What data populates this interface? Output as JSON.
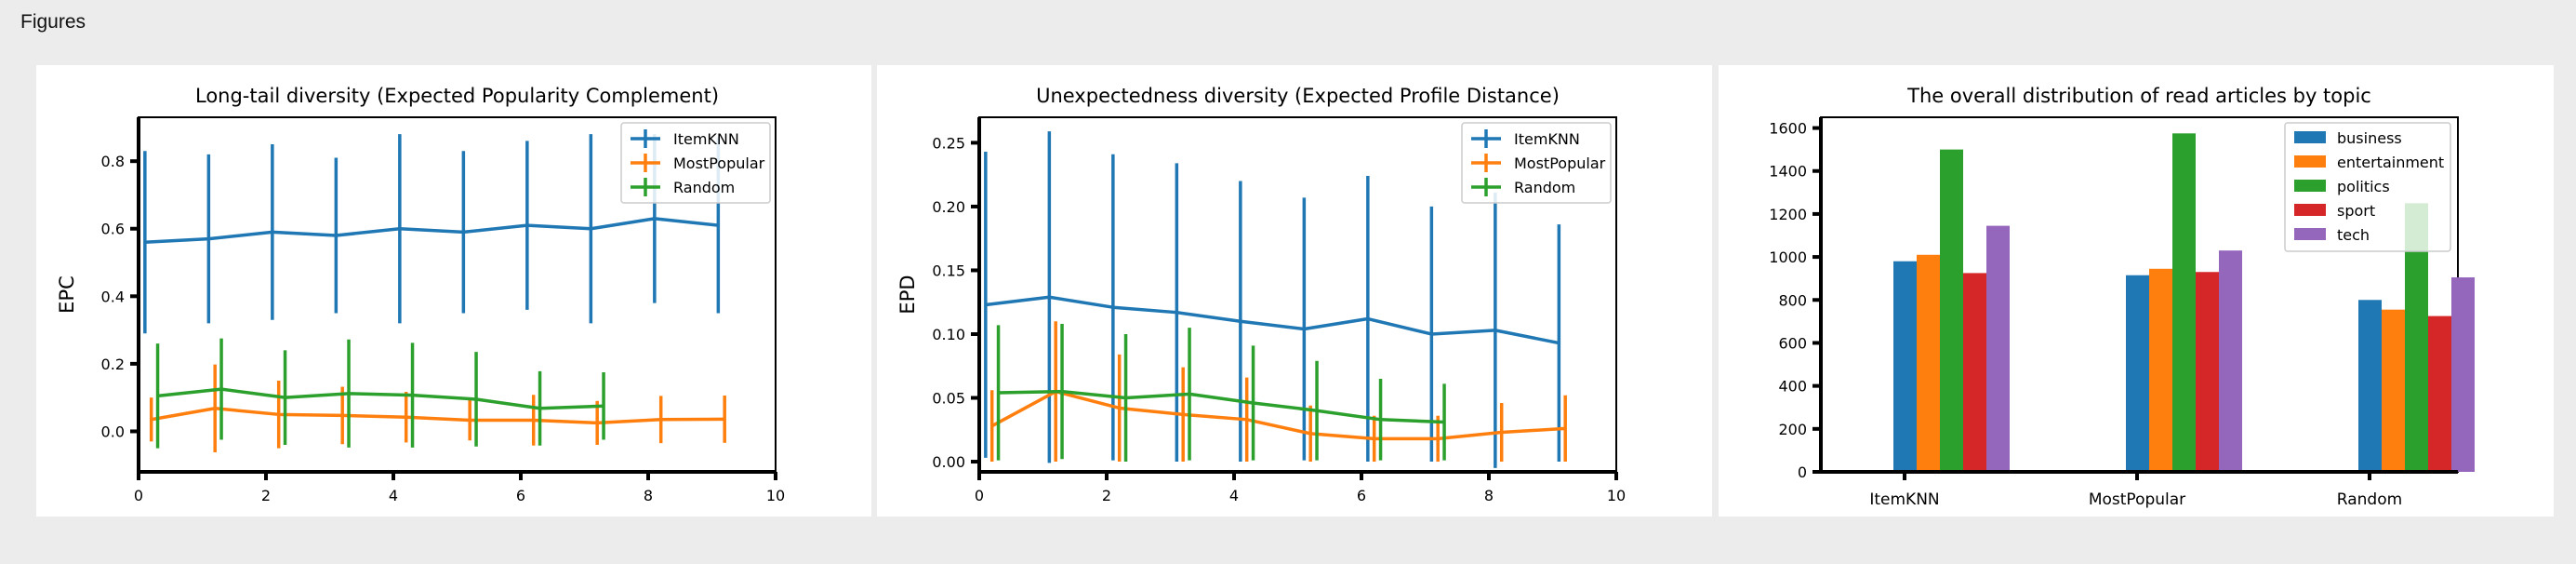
{
  "page": {
    "title": "Figures"
  },
  "colors": {
    "blue": "#1f77b4",
    "orange": "#ff7f0e",
    "green": "#2ca02c",
    "red": "#d62728",
    "purple": "#9467bd"
  },
  "chart_data": [
    {
      "type": "line",
      "errorbars": true,
      "title": "Long-tail diversity (Expected Popularity Complement)",
      "xlabel": "",
      "ylabel": "EPC",
      "xlim": [
        0,
        10
      ],
      "ylim": [
        -0.12,
        0.93
      ],
      "xticks": [
        "0",
        "2",
        "4",
        "6",
        "8",
        "10"
      ],
      "yticks": [
        "0.0",
        "0.2",
        "0.4",
        "0.6",
        "0.8"
      ],
      "legend_position": "top-right",
      "series": [
        {
          "name": "ItemKNN",
          "color": "#1f77b4",
          "x": [
            0.1,
            1.1,
            2.1,
            3.1,
            4.1,
            5.1,
            6.1,
            7.1,
            8.1,
            9.1
          ],
          "y": [
            0.56,
            0.57,
            0.59,
            0.58,
            0.6,
            0.59,
            0.61,
            0.6,
            0.63,
            0.61
          ],
          "err": [
            0.27,
            0.25,
            0.26,
            0.23,
            0.28,
            0.24,
            0.25,
            0.28,
            0.25,
            0.26
          ]
        },
        {
          "name": "MostPopular",
          "color": "#ff7f0e",
          "x": [
            0.2,
            1.2,
            2.2,
            3.2,
            4.2,
            5.2,
            6.2,
            7.2,
            8.2,
            9.2
          ],
          "y": [
            0.035,
            0.068,
            0.05,
            0.047,
            0.042,
            0.033,
            0.033,
            0.025,
            0.035,
            0.036
          ],
          "err": [
            0.065,
            0.13,
            0.1,
            0.085,
            0.075,
            0.06,
            0.075,
            0.065,
            0.07,
            0.07
          ]
        },
        {
          "name": "Random",
          "color": "#2ca02c",
          "x": [
            0.3,
            1.3,
            2.3,
            3.3,
            4.3,
            5.3,
            6.3,
            7.3
          ],
          "y": [
            0.105,
            0.125,
            0.1,
            0.112,
            0.107,
            0.095,
            0.068,
            0.075
          ],
          "err": [
            0.155,
            0.15,
            0.14,
            0.16,
            0.155,
            0.14,
            0.11,
            0.1
          ]
        }
      ]
    },
    {
      "type": "line",
      "errorbars": true,
      "title": "Unexpectedness diversity (Expected Profile Distance)",
      "xlabel": "",
      "ylabel": "EPD",
      "xlim": [
        0,
        10
      ],
      "ylim": [
        -0.008,
        0.27
      ],
      "xticks": [
        "0",
        "2",
        "4",
        "6",
        "8",
        "10"
      ],
      "yticks": [
        "0.00",
        "0.05",
        "0.10",
        "0.15",
        "0.20",
        "0.25"
      ],
      "legend_position": "top-right",
      "series": [
        {
          "name": "ItemKNN",
          "color": "#1f77b4",
          "x": [
            0.1,
            1.1,
            2.1,
            3.1,
            4.1,
            5.1,
            6.1,
            7.1,
            8.1,
            9.1
          ],
          "y": [
            0.123,
            0.129,
            0.121,
            0.117,
            0.11,
            0.104,
            0.112,
            0.1,
            0.103,
            0.093
          ],
          "err": [
            0.12,
            0.13,
            0.12,
            0.117,
            0.11,
            0.103,
            0.112,
            0.1,
            0.108,
            0.093
          ]
        },
        {
          "name": "MostPopular",
          "color": "#ff7f0e",
          "x": [
            0.2,
            1.2,
            2.2,
            3.2,
            4.2,
            5.2,
            6.2,
            7.2,
            8.2,
            9.2
          ],
          "y": [
            0.028,
            0.055,
            0.042,
            0.037,
            0.033,
            0.022,
            0.018,
            0.018,
            0.023,
            0.026
          ],
          "err": [
            0.028,
            0.055,
            0.042,
            0.037,
            0.033,
            0.022,
            0.018,
            0.018,
            0.023,
            0.026
          ]
        },
        {
          "name": "Random",
          "color": "#2ca02c",
          "x": [
            0.3,
            1.3,
            2.3,
            3.3,
            4.3,
            5.3,
            6.3,
            7.3
          ],
          "y": [
            0.054,
            0.055,
            0.05,
            0.053,
            0.046,
            0.04,
            0.033,
            0.031
          ],
          "err": [
            0.053,
            0.053,
            0.05,
            0.052,
            0.045,
            0.039,
            0.032,
            0.03
          ]
        }
      ]
    },
    {
      "type": "bar",
      "title": "The overall distribution of read articles by topic",
      "xlabel": "",
      "ylabel": "",
      "categories": [
        "ItemKNN",
        "MostPopular",
        "Random"
      ],
      "ylim": [
        0,
        1650
      ],
      "yticks": [
        "0",
        "200",
        "400",
        "600",
        "800",
        "1000",
        "1200",
        "1400",
        "1600"
      ],
      "legend_position": "top-right",
      "series": [
        {
          "name": "business",
          "color": "#1f77b4",
          "values": [
            980,
            915,
            800
          ]
        },
        {
          "name": "entertainment",
          "color": "#ff7f0e",
          "values": [
            1010,
            945,
            755
          ]
        },
        {
          "name": "politics",
          "color": "#2ca02c",
          "values": [
            1500,
            1575,
            1250
          ]
        },
        {
          "name": "sport",
          "color": "#d62728",
          "values": [
            925,
            930,
            725
          ]
        },
        {
          "name": "tech",
          "color": "#9467bd",
          "values": [
            1145,
            1030,
            905
          ]
        }
      ]
    }
  ]
}
